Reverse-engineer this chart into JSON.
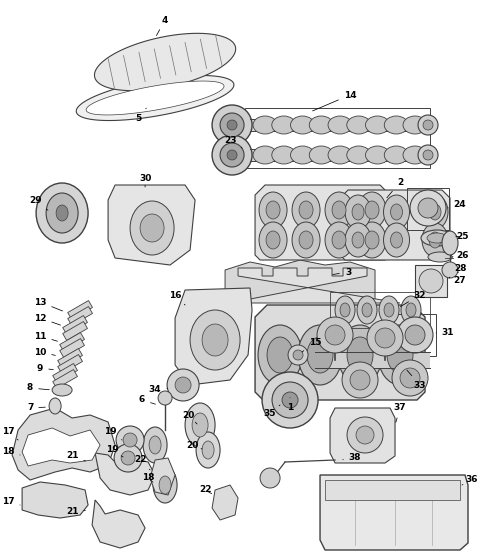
{
  "background_color": "#ffffff",
  "line_color": "#404040",
  "fig_width": 4.85,
  "fig_height": 5.57,
  "dpi": 100
}
